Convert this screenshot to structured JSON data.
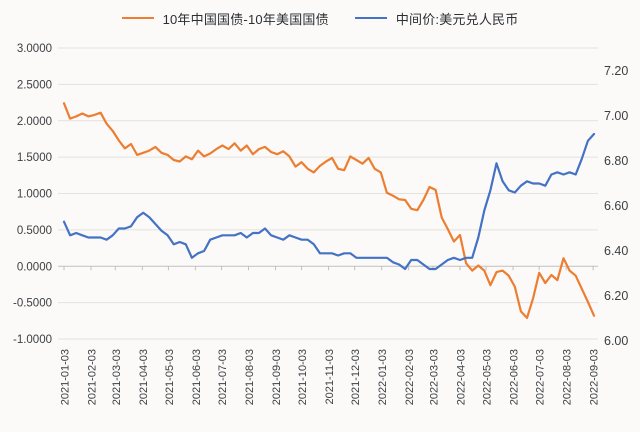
{
  "chart_data": {
    "type": "line",
    "title": "",
    "legend_position": "top",
    "grid": "horizontal",
    "colors": {
      "background": "#FBFAF8",
      "gridline": "#E4E2DF",
      "zero_axis_line": "#C2C0BD",
      "axis_text": "#3B3E43",
      "series_spread": "#ED7D31",
      "series_usdcny": "#4472C4"
    },
    "left_axis": {
      "min": -1.0,
      "max": 3.0,
      "step": 0.5,
      "ticks": [
        "3.0000",
        "2.5000",
        "2.0000",
        "1.5000",
        "1.0000",
        "0.5000",
        "0.0000",
        "-0.5000",
        "-1.0000"
      ]
    },
    "right_axis": {
      "min": 6.0,
      "max": 7.2,
      "step": 0.2,
      "ticks": [
        "7.20",
        "7.00",
        "6.80",
        "6.60",
        "6.40",
        "6.20",
        "6.00"
      ]
    },
    "x_tick_labels": [
      "2021-01-03",
      "2021-02-03",
      "2021-03-03",
      "2021-04-03",
      "2021-05-03",
      "2021-06-03",
      "2021-07-03",
      "2021-08-03",
      "2021-09-03",
      "2021-10-03",
      "2021-11-03",
      "2021-12-03",
      "2022-01-03",
      "2022-02-03",
      "2022-03-03",
      "2022-04-03",
      "2022-05-03",
      "2022-06-03",
      "2022-07-03",
      "2022-08-03",
      "2022-09-03"
    ],
    "dates": [
      "2021-01-03",
      "2021-01-10",
      "2021-01-17",
      "2021-01-24",
      "2021-01-31",
      "2021-02-07",
      "2021-02-14",
      "2021-02-21",
      "2021-02-28",
      "2021-03-07",
      "2021-03-14",
      "2021-03-21",
      "2021-03-28",
      "2021-04-04",
      "2021-04-11",
      "2021-04-18",
      "2021-04-25",
      "2021-05-02",
      "2021-05-09",
      "2021-05-16",
      "2021-05-23",
      "2021-05-30",
      "2021-06-06",
      "2021-06-13",
      "2021-06-20",
      "2021-06-27",
      "2021-07-04",
      "2021-07-11",
      "2021-07-18",
      "2021-07-25",
      "2021-08-01",
      "2021-08-08",
      "2021-08-15",
      "2021-08-22",
      "2021-08-29",
      "2021-09-05",
      "2021-09-12",
      "2021-09-19",
      "2021-09-26",
      "2021-10-03",
      "2021-10-10",
      "2021-10-17",
      "2021-10-24",
      "2021-10-31",
      "2021-11-07",
      "2021-11-14",
      "2021-11-21",
      "2021-11-28",
      "2021-12-05",
      "2021-12-12",
      "2021-12-19",
      "2021-12-26",
      "2022-01-02",
      "2022-01-09",
      "2022-01-16",
      "2022-01-23",
      "2022-01-30",
      "2022-02-06",
      "2022-02-13",
      "2022-02-20",
      "2022-02-27",
      "2022-03-06",
      "2022-03-13",
      "2022-03-20",
      "2022-03-27",
      "2022-04-03",
      "2022-04-10",
      "2022-04-17",
      "2022-04-24",
      "2022-05-01",
      "2022-05-08",
      "2022-05-15",
      "2022-05-22",
      "2022-05-29",
      "2022-06-05",
      "2022-06-12",
      "2022-06-19",
      "2022-06-26",
      "2022-07-03",
      "2022-07-10",
      "2022-07-17",
      "2022-07-24",
      "2022-07-31",
      "2022-08-07",
      "2022-08-14",
      "2022-08-21",
      "2022-08-28",
      "2022-09-04"
    ],
    "series": [
      {
        "name": "10年中国国债-10年美国国债",
        "axis": "left",
        "color": "#ED7D31",
        "values": [
          2.24,
          2.03,
          2.06,
          2.1,
          2.06,
          2.08,
          2.11,
          1.96,
          1.86,
          1.73,
          1.62,
          1.68,
          1.53,
          1.56,
          1.59,
          1.64,
          1.56,
          1.53,
          1.46,
          1.44,
          1.51,
          1.47,
          1.59,
          1.51,
          1.55,
          1.61,
          1.66,
          1.61,
          1.69,
          1.59,
          1.66,
          1.54,
          1.61,
          1.64,
          1.57,
          1.54,
          1.58,
          1.51,
          1.37,
          1.43,
          1.34,
          1.29,
          1.38,
          1.44,
          1.49,
          1.34,
          1.32,
          1.51,
          1.46,
          1.41,
          1.49,
          1.34,
          1.29,
          1.01,
          0.97,
          0.92,
          0.91,
          0.79,
          0.77,
          0.91,
          1.09,
          1.05,
          0.67,
          0.51,
          0.34,
          0.43,
          0.04,
          -0.06,
          0.01,
          -0.06,
          -0.26,
          -0.08,
          -0.06,
          -0.13,
          -0.28,
          -0.62,
          -0.71,
          -0.44,
          -0.09,
          -0.23,
          -0.12,
          -0.19,
          0.11,
          -0.06,
          -0.13,
          -0.31,
          -0.49,
          -0.68
        ]
      },
      {
        "name": "中间价:美元兑人民币",
        "axis": "right",
        "color": "#4472C4",
        "values": [
          6.53,
          6.47,
          6.48,
          6.47,
          6.46,
          6.46,
          6.46,
          6.45,
          6.47,
          6.5,
          6.5,
          6.51,
          6.55,
          6.57,
          6.55,
          6.52,
          6.49,
          6.47,
          6.43,
          6.44,
          6.43,
          6.37,
          6.39,
          6.4,
          6.45,
          6.46,
          6.47,
          6.47,
          6.47,
          6.48,
          6.46,
          6.48,
          6.48,
          6.5,
          6.47,
          6.46,
          6.45,
          6.47,
          6.46,
          6.45,
          6.45,
          6.43,
          6.39,
          6.39,
          6.39,
          6.38,
          6.39,
          6.39,
          6.37,
          6.37,
          6.37,
          6.37,
          6.37,
          6.37,
          6.35,
          6.34,
          6.32,
          6.36,
          6.36,
          6.34,
          6.32,
          6.32,
          6.34,
          6.36,
          6.37,
          6.36,
          6.37,
          6.37,
          6.46,
          6.58,
          6.67,
          6.79,
          6.71,
          6.67,
          6.66,
          6.69,
          6.71,
          6.7,
          6.7,
          6.69,
          6.74,
          6.75,
          6.74,
          6.75,
          6.74,
          6.81,
          6.89,
          6.92
        ]
      }
    ]
  }
}
